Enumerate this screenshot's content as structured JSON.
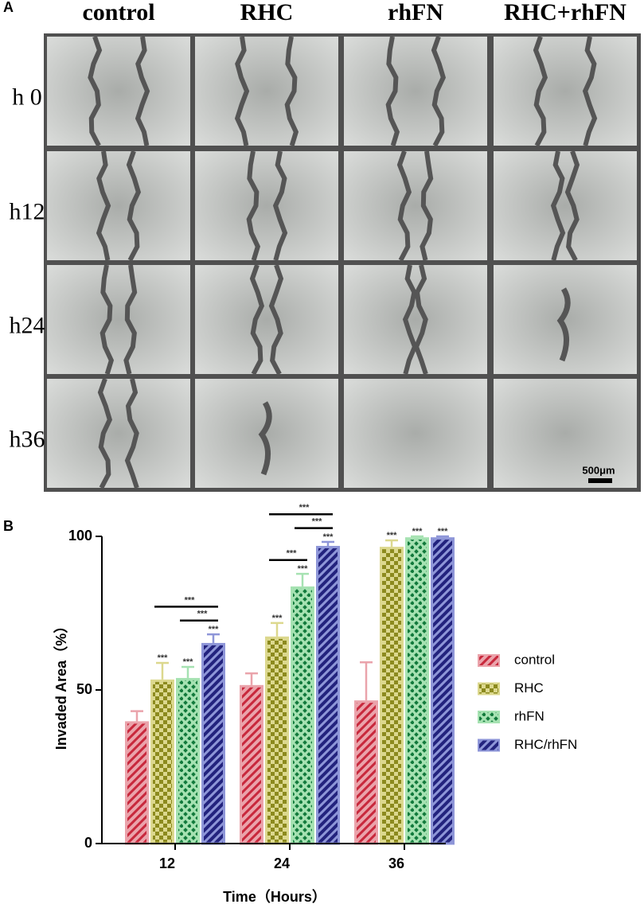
{
  "panel_a": {
    "label": "A",
    "columns": [
      "control",
      "RHC",
      "rhFN",
      "RHC+rhFN"
    ],
    "rows": [
      "h 0",
      "h12",
      "h24",
      "h36"
    ],
    "scale_bar": "500μm"
  },
  "chart_data": {
    "type": "bar",
    "panel_label": "B",
    "x_label": "Time（Hours）",
    "y_label": "Invaded Area（%）",
    "categories": [
      "12",
      "24",
      "36"
    ],
    "series": [
      {
        "name": "control",
        "color": "#c8283c",
        "fill": "#eaa3ab",
        "values": [
          39.8,
          51.6,
          46.6
        ],
        "errors": [
          3.3,
          3.8,
          12.4
        ]
      },
      {
        "name": "RHC",
        "color": "#8c8a1e",
        "fill": "#dcd88e",
        "values": [
          53.4,
          67.4,
          96.6
        ],
        "errors": [
          5.4,
          4.4,
          2.1
        ],
        "significance": [
          "***",
          "***",
          "***"
        ]
      },
      {
        "name": "rhFN",
        "color": "#127a3c",
        "fill": "#a6e2b2",
        "values": [
          53.9,
          83.7,
          99.7
        ],
        "errors": [
          3.6,
          4.1,
          0.3
        ],
        "significance": [
          "***",
          "***",
          "***"
        ]
      },
      {
        "name": "RHC/rhFN",
        "color": "#23237e",
        "fill": "#8e96d8",
        "values": [
          65.3,
          96.9,
          99.7
        ],
        "errors": [
          2.8,
          1.3,
          0.3
        ],
        "significance": [
          "***",
          "***",
          "***"
        ]
      }
    ],
    "comparisons": [
      {
        "category": "12",
        "between": [
          "rhFN",
          "RHC/rhFN"
        ],
        "label": "***"
      },
      {
        "category": "12",
        "between": [
          "RHC",
          "RHC/rhFN"
        ],
        "label": "***"
      },
      {
        "category": "24",
        "between": [
          "RHC",
          "rhFN"
        ],
        "label": "***"
      },
      {
        "category": "24",
        "between": [
          "rhFN",
          "RHC/rhFN"
        ],
        "label": "***"
      },
      {
        "category": "24",
        "between": [
          "RHC",
          "RHC/rhFN"
        ],
        "label": "***"
      }
    ],
    "ylim": [
      0,
      100
    ],
    "yticks": [
      0,
      50,
      100
    ],
    "grid": false
  }
}
